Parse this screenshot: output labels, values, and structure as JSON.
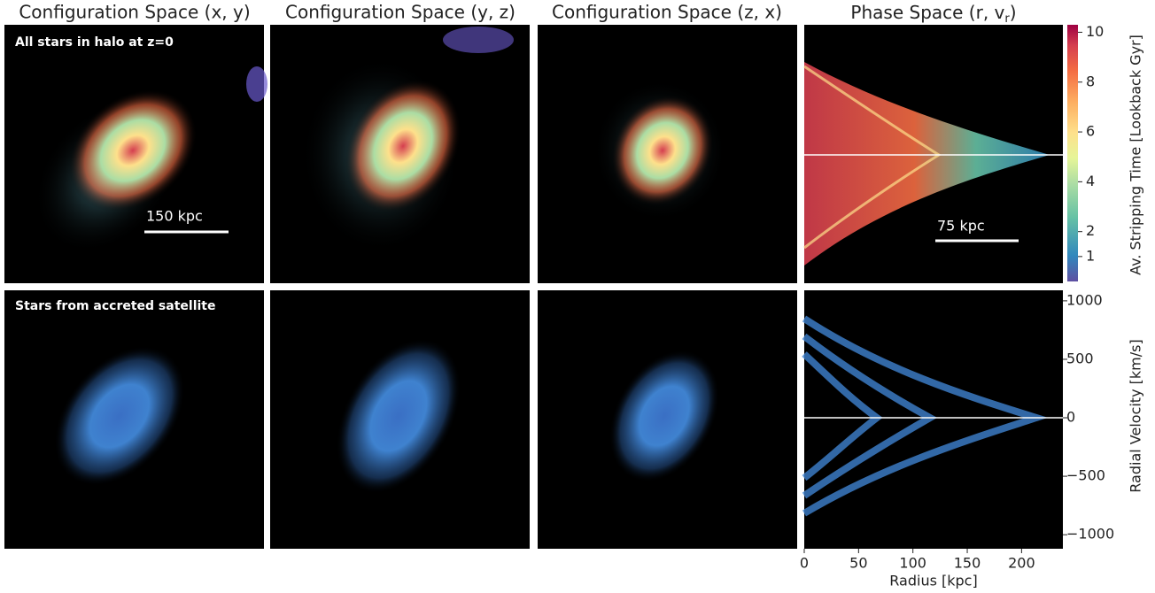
{
  "panels": {
    "titles": [
      "Configuration Space (x, y)",
      "Configuration Space (y, z)",
      "Configuration Space (z, x)"
    ],
    "phase_title": {
      "text": "Phase Space (r, v",
      "subscript": "r",
      "close": ")"
    },
    "row_labels": [
      "All stars in halo at z=0",
      "Stars from accreted satellite"
    ],
    "scale_bars": [
      "150 kpc",
      "75 kpc"
    ]
  },
  "colorbar": {
    "label": "Av. Stripping Time [Lookback Gyr]",
    "lim": [
      0,
      10.3
    ],
    "ticks": [
      1,
      2,
      4,
      6,
      8,
      10
    ]
  },
  "phase_axes": {
    "xlabel": "Radius [kpc]",
    "ylabel": "Radial Velocity [km/s]",
    "xlim": [
      0,
      238
    ],
    "xticks": [
      0,
      50,
      100,
      150,
      200
    ],
    "ylim": [
      -1120,
      1090
    ],
    "yticks": [
      {
        "value": -1000,
        "label": "−1000"
      },
      {
        "value": -500,
        "label": "−500"
      },
      0,
      500,
      1000
    ]
  }
}
